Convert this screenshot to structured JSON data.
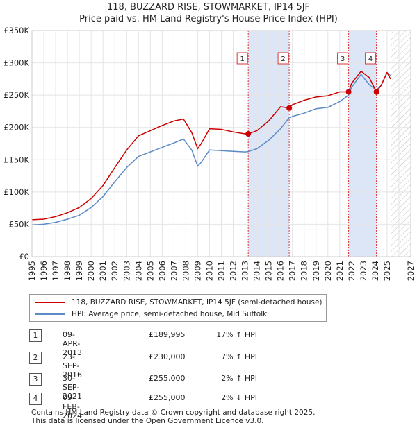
{
  "title": "118, BUZZARD RISE, STOWMARKET, IP14 5JF",
  "subtitle": "Price paid vs. HM Land Registry's House Price Index (HPI)",
  "chart_data": {
    "type": "line",
    "xlim": [
      1995,
      2027
    ],
    "ylim": [
      0,
      350000
    ],
    "y_ticks": [
      {
        "value": 0,
        "label": "£0"
      },
      {
        "value": 50000,
        "label": "£50K"
      },
      {
        "value": 100000,
        "label": "£100K"
      },
      {
        "value": 150000,
        "label": "£150K"
      },
      {
        "value": 200000,
        "label": "£200K"
      },
      {
        "value": 250000,
        "label": "£250K"
      },
      {
        "value": 300000,
        "label": "£300K"
      },
      {
        "value": 350000,
        "label": "£350K"
      }
    ],
    "x_ticks": [
      "1995",
      "1996",
      "1997",
      "1998",
      "1999",
      "2000",
      "2001",
      "2002",
      "2003",
      "2004",
      "2005",
      "2006",
      "2007",
      "2008",
      "2009",
      "2010",
      "2011",
      "2012",
      "2013",
      "2014",
      "2015",
      "2016",
      "2017",
      "2018",
      "2019",
      "2020",
      "2021",
      "2022",
      "2023",
      "2024",
      "2025",
      "2027"
    ],
    "forecast_start": 2025.3,
    "shaded_periods": [
      [
        2013.27,
        2016.73
      ],
      [
        2021.75,
        2024.1
      ]
    ],
    "series": [
      {
        "name": "118, BUZZARD RISE, STOWMARKET, IP14 5JF (semi-detached house)",
        "color": "#cc0000",
        "x": [
          1995,
          1996,
          1997,
          1998,
          1999,
          2000,
          2001,
          2002,
          2003,
          2004,
          2005,
          2006,
          2007,
          2007.8,
          2008.5,
          2009.0,
          2009.3,
          2010,
          2011,
          2012,
          2013,
          2013.27,
          2014,
          2015,
          2016,
          2016.73,
          2017,
          2018,
          2019,
          2020,
          2021,
          2021.75,
          2022,
          2022.8,
          2023.5,
          2024.1,
          2024.5,
          2025,
          2025.3
        ],
        "y": [
          57000,
          58000,
          62000,
          68000,
          76000,
          90000,
          110000,
          138000,
          165000,
          187000,
          195000,
          203000,
          210000,
          213000,
          192000,
          167000,
          175000,
          198000,
          197000,
          193000,
          190000,
          189995,
          195000,
          210000,
          232000,
          230000,
          235000,
          242000,
          247000,
          249000,
          255000,
          255000,
          268000,
          287000,
          277000,
          255000,
          265000,
          285000,
          275000
        ]
      },
      {
        "name": "HPI: Average price, semi-detached house, Mid Suffolk",
        "color": "#5b8ac6",
        "x": [
          1995,
          1996,
          1997,
          1998,
          1999,
          2000,
          2001,
          2002,
          2003,
          2004,
          2005,
          2006,
          2007,
          2007.8,
          2008.5,
          2009.0,
          2009.3,
          2010,
          2011,
          2012,
          2013,
          2013.27,
          2014,
          2015,
          2016,
          2016.73,
          2017,
          2018,
          2019,
          2020,
          2021,
          2021.75,
          2022,
          2022.8,
          2023.5,
          2024.1,
          2024.5,
          2025,
          2025.3
        ],
        "y": [
          49000,
          50000,
          53000,
          58000,
          64000,
          76000,
          93000,
          116000,
          138000,
          155000,
          162000,
          169000,
          176000,
          182000,
          165000,
          140000,
          146000,
          165000,
          164000,
          163000,
          162000,
          162500,
          167000,
          180000,
          198000,
          215000,
          217000,
          222000,
          229000,
          231000,
          240000,
          250000,
          262000,
          282000,
          266000,
          258000,
          265000,
          285000,
          280000
        ]
      }
    ],
    "sales": [
      {
        "label": "1",
        "x": 2013.27,
        "y": 189995
      },
      {
        "label": "2",
        "x": 2016.73,
        "y": 230000
      },
      {
        "label": "3",
        "x": 2021.75,
        "y": 255000
      },
      {
        "label": "4",
        "x": 2024.1,
        "y": 255000
      }
    ]
  },
  "legend": {
    "property": "118, BUZZARD RISE, STOWMARKET, IP14 5JF (semi-detached house)",
    "hpi": "HPI: Average price, semi-detached house, Mid Suffolk"
  },
  "transactions": [
    {
      "num": "1",
      "date": "09-APR-2013",
      "price": "£189,995",
      "hpi": "17% ↑ HPI"
    },
    {
      "num": "2",
      "date": "23-SEP-2016",
      "price": "£230,000",
      "hpi": "7% ↑ HPI"
    },
    {
      "num": "3",
      "date": "30-SEP-2021",
      "price": "£255,000",
      "hpi": "2% ↑ HPI"
    },
    {
      "num": "4",
      "date": "09-FEB-2024",
      "price": "£255,000",
      "hpi": "2% ↓ HPI"
    }
  ],
  "footer": {
    "line1": "Contains HM Land Registry data © Crown copyright and database right 2025.",
    "line2": "This data is licensed under the Open Government Licence v3.0."
  }
}
